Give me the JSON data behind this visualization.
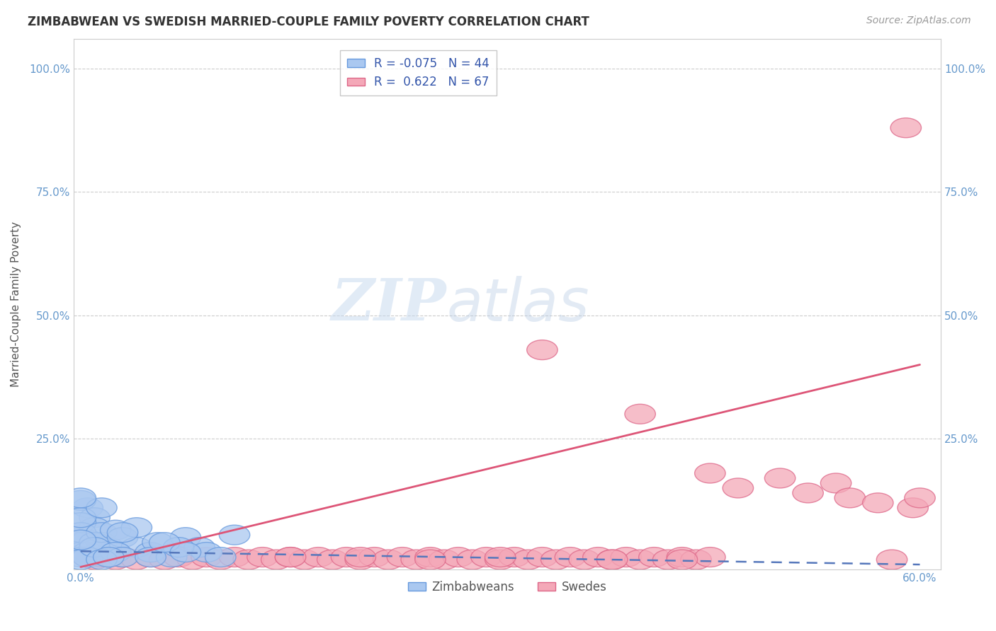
{
  "title": "ZIMBABWEAN VS SWEDISH MARRIED-COUPLE FAMILY POVERTY CORRELATION CHART",
  "source": "Source: ZipAtlas.com",
  "ylabel": "Married-Couple Family Poverty",
  "xlim": [
    -0.005,
    0.615
  ],
  "ylim": [
    -0.015,
    1.06
  ],
  "xticks": [
    0.0,
    0.1,
    0.2,
    0.3,
    0.4,
    0.5,
    0.6
  ],
  "xticklabels": [
    "0.0%",
    "",
    "",
    "",
    "",
    "",
    "60.0%"
  ],
  "yticks": [
    0.25,
    0.5,
    0.75,
    1.0
  ],
  "yticklabels": [
    "25.0%",
    "50.0%",
    "75.0%",
    "100.0%"
  ],
  "legend_R_zim": "-0.075",
  "legend_N_zim": "44",
  "legend_R_swe": "0.622",
  "legend_N_swe": "67",
  "zim_color": "#aac8f0",
  "swe_color": "#f4a8b8",
  "zim_edge_color": "#6699dd",
  "swe_edge_color": "#dd6688",
  "zim_line_color": "#5577bb",
  "swe_line_color": "#dd5577",
  "watermark_zip": "ZIP",
  "watermark_atlas": "atlas",
  "background_color": "#ffffff",
  "grid_color": "#cccccc",
  "title_color": "#333333",
  "source_color": "#999999",
  "tick_color": "#6699cc",
  "swe_line_x0": 0.0,
  "swe_line_y0": -0.01,
  "swe_line_x1": 0.6,
  "swe_line_y1": 0.4,
  "zim_line_x0": 0.0,
  "zim_line_y0": 0.022,
  "zim_line_x1": 0.6,
  "zim_line_y1": -0.005,
  "zim_scatter": [
    [
      0.0,
      0.04
    ],
    [
      0.0,
      0.05
    ],
    [
      0.005,
      0.11
    ],
    [
      0.01,
      0.09
    ],
    [
      0.01,
      0.07
    ],
    [
      0.0,
      0.125
    ],
    [
      0.005,
      0.045
    ],
    [
      0.0,
      0.02
    ],
    [
      0.0,
      0.08
    ],
    [
      0.005,
      0.02
    ],
    [
      0.015,
      0.04
    ],
    [
      0.02,
      0.03
    ],
    [
      0.0,
      0.06
    ],
    [
      0.01,
      0.04
    ],
    [
      0.0,
      0.01
    ],
    [
      0.0,
      0.09
    ],
    [
      0.015,
      0.06
    ],
    [
      0.005,
      0.01
    ],
    [
      0.025,
      0.065
    ],
    [
      0.0,
      0.005
    ],
    [
      0.03,
      0.05
    ],
    [
      0.015,
      0.11
    ],
    [
      0.01,
      0.03
    ],
    [
      0.0,
      0.045
    ],
    [
      0.0,
      0.13
    ],
    [
      0.04,
      0.03
    ],
    [
      0.025,
      0.02
    ],
    [
      0.05,
      0.02
    ],
    [
      0.03,
      0.01
    ],
    [
      0.015,
      0.005
    ],
    [
      0.055,
      0.04
    ],
    [
      0.065,
      0.01
    ],
    [
      0.02,
      0.01
    ],
    [
      0.075,
      0.05
    ],
    [
      0.04,
      0.07
    ],
    [
      0.085,
      0.03
    ],
    [
      0.05,
      0.01
    ],
    [
      0.09,
      0.02
    ],
    [
      0.07,
      0.03
    ],
    [
      0.03,
      0.06
    ],
    [
      0.1,
      0.01
    ],
    [
      0.06,
      0.04
    ],
    [
      0.11,
      0.055
    ],
    [
      0.075,
      0.02
    ]
  ],
  "swe_scatter": [
    [
      0.005,
      0.01
    ],
    [
      0.01,
      0.005
    ],
    [
      0.015,
      0.01
    ],
    [
      0.02,
      0.01
    ],
    [
      0.025,
      0.005
    ],
    [
      0.03,
      0.01
    ],
    [
      0.04,
      0.005
    ],
    [
      0.05,
      0.01
    ],
    [
      0.06,
      0.005
    ],
    [
      0.07,
      0.01
    ],
    [
      0.08,
      0.005
    ],
    [
      0.09,
      0.01
    ],
    [
      0.1,
      0.005
    ],
    [
      0.11,
      0.01
    ],
    [
      0.12,
      0.005
    ],
    [
      0.13,
      0.01
    ],
    [
      0.14,
      0.005
    ],
    [
      0.15,
      0.01
    ],
    [
      0.16,
      0.005
    ],
    [
      0.17,
      0.01
    ],
    [
      0.18,
      0.005
    ],
    [
      0.19,
      0.01
    ],
    [
      0.2,
      0.005
    ],
    [
      0.21,
      0.01
    ],
    [
      0.22,
      0.005
    ],
    [
      0.23,
      0.01
    ],
    [
      0.24,
      0.005
    ],
    [
      0.25,
      0.01
    ],
    [
      0.26,
      0.005
    ],
    [
      0.27,
      0.01
    ],
    [
      0.28,
      0.005
    ],
    [
      0.29,
      0.01
    ],
    [
      0.3,
      0.005
    ],
    [
      0.31,
      0.01
    ],
    [
      0.32,
      0.005
    ],
    [
      0.33,
      0.01
    ],
    [
      0.34,
      0.005
    ],
    [
      0.35,
      0.01
    ],
    [
      0.36,
      0.005
    ],
    [
      0.37,
      0.01
    ],
    [
      0.38,
      0.005
    ],
    [
      0.39,
      0.01
    ],
    [
      0.4,
      0.005
    ],
    [
      0.41,
      0.01
    ],
    [
      0.42,
      0.005
    ],
    [
      0.43,
      0.01
    ],
    [
      0.44,
      0.005
    ],
    [
      0.45,
      0.01
    ],
    [
      0.15,
      0.01
    ],
    [
      0.2,
      0.01
    ],
    [
      0.25,
      0.005
    ],
    [
      0.3,
      0.01
    ],
    [
      0.33,
      0.43
    ],
    [
      0.38,
      0.005
    ],
    [
      0.4,
      0.3
    ],
    [
      0.43,
      0.005
    ],
    [
      0.45,
      0.18
    ],
    [
      0.47,
      0.15
    ],
    [
      0.5,
      0.17
    ],
    [
      0.52,
      0.14
    ],
    [
      0.54,
      0.16
    ],
    [
      0.55,
      0.13
    ],
    [
      0.57,
      0.12
    ],
    [
      0.58,
      0.005
    ],
    [
      0.59,
      0.88
    ],
    [
      0.595,
      0.11
    ],
    [
      0.6,
      0.13
    ]
  ]
}
